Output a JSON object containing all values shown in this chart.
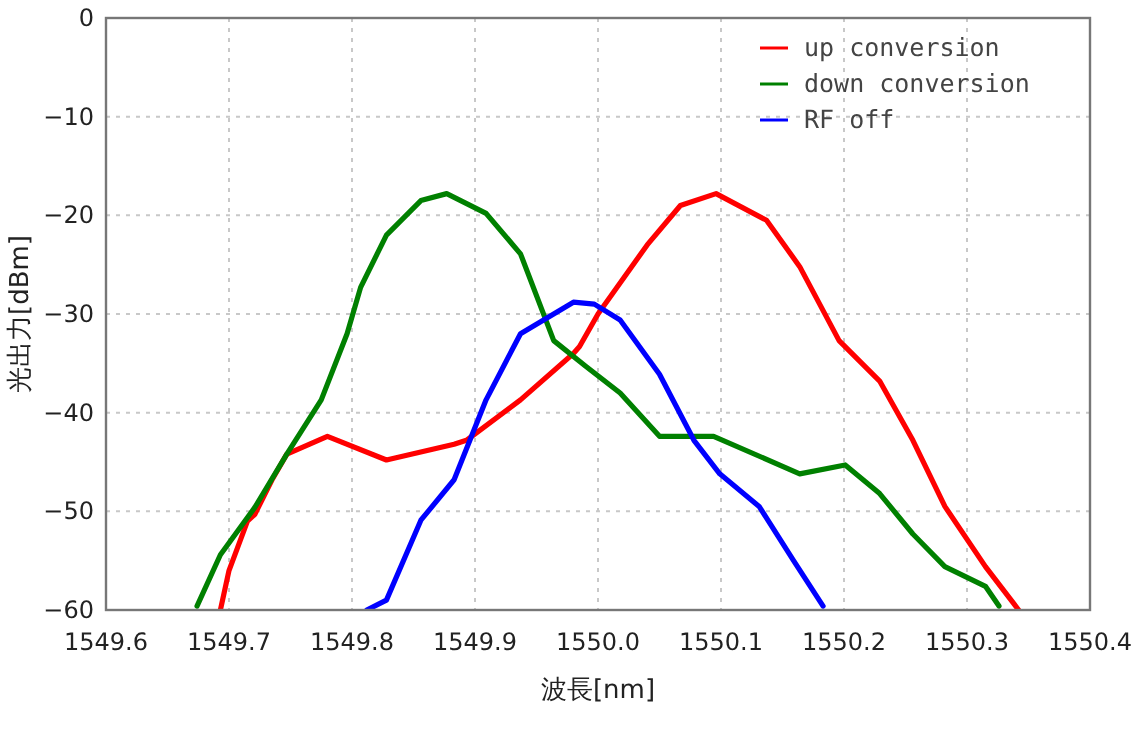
{
  "chart_data": {
    "type": "line",
    "xlabel": "波長[nm]",
    "ylabel": "光出力[dBm]",
    "xlim": [
      1549.6,
      1550.4
    ],
    "ylim": [
      -60,
      0
    ],
    "xticks": [
      1549.6,
      1549.7,
      1549.8,
      1549.9,
      {
        "value": 1550.0,
        "label": "1550.0"
      },
      1550.1,
      1550.2,
      1550.3,
      1550.4
    ],
    "yticks": [
      -60,
      -50,
      -40,
      -30,
      -20,
      -10,
      0
    ],
    "grid": true,
    "legend": "top right",
    "series": [
      {
        "name": "up conversion",
        "color": "#ff0000",
        "x": [
          1549.693,
          1549.7,
          1549.715,
          1549.721,
          1549.735,
          1549.747,
          1549.78,
          1549.828,
          1549.883,
          1549.893,
          1549.937,
          1549.98,
          1549.985,
          1550.0,
          1550.04,
          1550.067,
          1550.096,
          1550.137,
          1550.164,
          1550.196,
          1550.229,
          1550.256,
          1550.282,
          1550.315,
          1550.342
        ],
        "values": [
          -60,
          -56,
          -51,
          -50.3,
          -46.8,
          -44.2,
          -42.4,
          -44.8,
          -43.2,
          -42.8,
          -38.7,
          -34,
          -33.3,
          -30,
          -23,
          -19,
          -17.8,
          -20.5,
          -25.2,
          -32.7,
          -36.8,
          -42.8,
          -49.5,
          -55.6,
          -60
        ]
      },
      {
        "name": "down conversion",
        "color": "#008000",
        "x": [
          1549.674,
          1549.693,
          1549.721,
          1549.747,
          1549.775,
          1549.796,
          1549.807,
          1549.828,
          1549.856,
          1549.877,
          1549.909,
          1549.937,
          1549.964,
          1549.99,
          1550.018,
          1550.05,
          1550.094,
          1550.164,
          1550.201,
          1550.229,
          1550.256,
          1550.282,
          1550.315,
          1550.326
        ],
        "values": [
          -59.6,
          -54.4,
          -49.6,
          -44.2,
          -38.7,
          -32,
          -27.3,
          -22,
          -18.5,
          -17.8,
          -19.8,
          -23.9,
          -32.7,
          -35.3,
          -38,
          -42.4,
          -42.4,
          -46.2,
          -45.3,
          -48.2,
          -52.3,
          -55.6,
          -57.6,
          -59.6
        ]
      },
      {
        "name": "RF off",
        "color": "#0000ff",
        "x": [
          1549.812,
          1549.828,
          1549.856,
          1549.883,
          1549.909,
          1549.937,
          1549.98,
          1549.997,
          1550.018,
          1550.05,
          1550.078,
          1550.099,
          1550.131,
          1550.159,
          1550.183
        ],
        "values": [
          -60,
          -59,
          -50.9,
          -46.8,
          -38.7,
          -32,
          -28.8,
          -29,
          -30.6,
          -36.1,
          -42.8,
          -46.2,
          -49.5,
          -55,
          -59.6
        ]
      }
    ]
  }
}
